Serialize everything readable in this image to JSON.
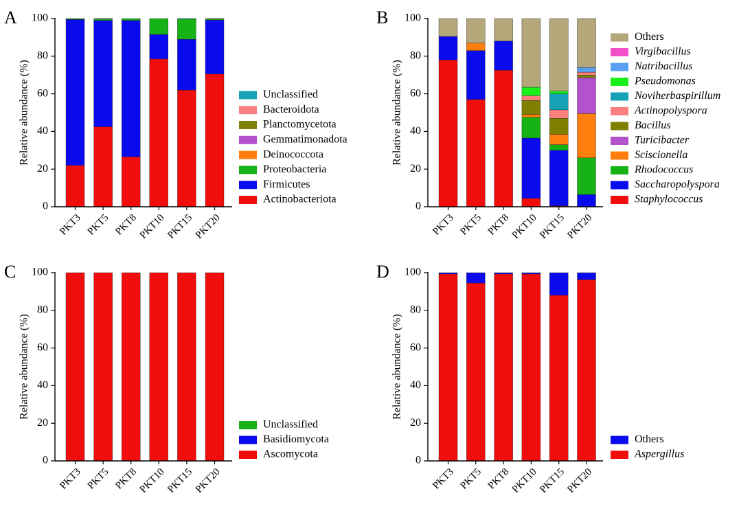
{
  "figure_colors": {
    "Others": "#B4A77A",
    "Unclassified_fungi": "#16B216",
    "Basidiomycota": "#0A0AEE",
    "Ascomycota": "#F20D0D",
    "Aspergillus": "#F20D0D"
  },
  "chart_data": [
    {
      "type": "bar",
      "stacked": true,
      "panel_label": "A",
      "title": "",
      "xlabel": "",
      "ylabel": "Relative abundance (%)",
      "ylim": [
        0,
        100
      ],
      "yticks": [
        "0",
        "20",
        "40",
        "60",
        "80",
        "100"
      ],
      "categories": [
        "PKT3",
        "PKT5",
        "PKT8",
        "PKT10",
        "PKT15",
        "PKT20"
      ],
      "series": [
        {
          "name": "Actinobacteriota",
          "italic": false,
          "color": "#F20D0D",
          "values": [
            22,
            42.5,
            26.5,
            78.5,
            62,
            70.5
          ]
        },
        {
          "name": "Firmicutes",
          "italic": false,
          "color": "#0A0AEE",
          "values": [
            77.5,
            56.5,
            72.5,
            13,
            27,
            28.7
          ]
        },
        {
          "name": "Proteobacteria",
          "italic": false,
          "color": "#16B216",
          "values": [
            0.5,
            0.8,
            1,
            8.5,
            10.7,
            0.5
          ]
        },
        {
          "name": "Deinococcota",
          "italic": false,
          "color": "#FF7F0E",
          "values": [
            0,
            0,
            0,
            0,
            0,
            0
          ]
        },
        {
          "name": "Gemmatimonadota",
          "italic": false,
          "color": "#B452CD",
          "values": [
            0,
            0,
            0,
            0,
            0,
            0
          ]
        },
        {
          "name": "Planctomycetota",
          "italic": false,
          "color": "#7F7F00",
          "values": [
            0,
            0,
            0,
            0,
            0,
            0.3
          ]
        },
        {
          "name": "Bacteroidota",
          "italic": false,
          "color": "#FA8080",
          "values": [
            0,
            0,
            0,
            0,
            0,
            0
          ]
        },
        {
          "name": "Unclassified",
          "italic": false,
          "color": "#17A2B8",
          "values": [
            0,
            0.2,
            0,
            0,
            0.3,
            0
          ]
        }
      ]
    },
    {
      "type": "bar",
      "stacked": true,
      "panel_label": "B",
      "title": "",
      "xlabel": "",
      "ylabel": "Relative abundance (%)",
      "ylim": [
        0,
        100
      ],
      "yticks": [
        "0",
        "20",
        "40",
        "60",
        "80",
        "100"
      ],
      "categories": [
        "PKT3",
        "PKT5",
        "PKT8",
        "PKT10",
        "PKT15",
        "PKT20"
      ],
      "series": [
        {
          "name": "Staphylococcus",
          "italic": true,
          "color": "#F20D0D",
          "values": [
            78,
            57,
            72.5,
            4.5,
            0.5,
            0
          ]
        },
        {
          "name": "Saccharopolyspora",
          "italic": true,
          "color": "#0A0AEE",
          "values": [
            12.5,
            26,
            15.5,
            32,
            29.5,
            6.5
          ]
        },
        {
          "name": "Rhodococcus",
          "italic": true,
          "color": "#16B216",
          "values": [
            0,
            0,
            0,
            11,
            3,
            19.5
          ]
        },
        {
          "name": "Sciscionella",
          "italic": true,
          "color": "#FF7F0E",
          "values": [
            0,
            4,
            0,
            1.5,
            5.5,
            23.5
          ]
        },
        {
          "name": "Turicibacter",
          "italic": true,
          "color": "#B452CD",
          "values": [
            0,
            0,
            0,
            0,
            0,
            19
          ]
        },
        {
          "name": "Bacillus",
          "italic": true,
          "color": "#7F7F00",
          "values": [
            0,
            0,
            0,
            7.5,
            8.5,
            1.5
          ]
        },
        {
          "name": "Actinopolyspora",
          "italic": true,
          "color": "#FA8080",
          "values": [
            0,
            0,
            0,
            2.5,
            4.5,
            1.5
          ]
        },
        {
          "name": "Noviherbaspirillum",
          "italic": true,
          "color": "#17A2B8",
          "values": [
            0,
            0,
            0,
            0,
            8.5,
            0
          ]
        },
        {
          "name": "Pseudomonas",
          "italic": true,
          "color": "#1AF01A",
          "values": [
            0,
            0,
            0,
            4.5,
            1.5,
            0
          ]
        },
        {
          "name": "Natribacillus",
          "italic": true,
          "color": "#5AA0F0",
          "values": [
            0,
            0,
            0,
            0,
            0,
            2.5
          ]
        },
        {
          "name": "Virgibacillus",
          "italic": true,
          "color": "#F050C8",
          "values": [
            0,
            0,
            0,
            0,
            0,
            0
          ]
        },
        {
          "name": "Others",
          "italic": false,
          "color": "#B4A77A",
          "values": [
            9.5,
            13,
            12,
            36.5,
            38.5,
            26
          ]
        }
      ]
    },
    {
      "type": "bar",
      "stacked": true,
      "panel_label": "C",
      "title": "",
      "xlabel": "",
      "ylabel": "Relative abundance (%)",
      "ylim": [
        0,
        100
      ],
      "yticks": [
        "0",
        "20",
        "40",
        "60",
        "80",
        "100"
      ],
      "categories": [
        "PKT3",
        "PKT5",
        "PKT8",
        "PKT10",
        "PKT15",
        "PKT20"
      ],
      "series": [
        {
          "name": "Ascomycota",
          "italic": false,
          "color": "#F20D0D",
          "values": [
            100,
            100,
            100,
            100,
            100,
            100
          ]
        },
        {
          "name": "Basidiomycota",
          "italic": false,
          "color": "#0A0AEE",
          "values": [
            0,
            0,
            0,
            0,
            0,
            0
          ]
        },
        {
          "name": "Unclassified",
          "italic": false,
          "color": "#16B216",
          "values": [
            0,
            0,
            0,
            0,
            0,
            0
          ]
        }
      ]
    },
    {
      "type": "bar",
      "stacked": true,
      "panel_label": "D",
      "title": "",
      "xlabel": "",
      "ylabel": "Relative abundance (%)",
      "ylim": [
        0,
        100
      ],
      "yticks": [
        "0",
        "20",
        "40",
        "60",
        "80",
        "100"
      ],
      "categories": [
        "PKT3",
        "PKT5",
        "PKT8",
        "PKT10",
        "PKT15",
        "PKT20"
      ],
      "series": [
        {
          "name": "Aspergillus",
          "italic": true,
          "color": "#F20D0D",
          "values": [
            99.3,
            94.5,
            99.3,
            99.3,
            88,
            96.3
          ]
        },
        {
          "name": "Others",
          "italic": false,
          "color": "#0A0AEE",
          "values": [
            0.7,
            5.5,
            0.7,
            0.7,
            12,
            3.7
          ]
        }
      ]
    }
  ]
}
